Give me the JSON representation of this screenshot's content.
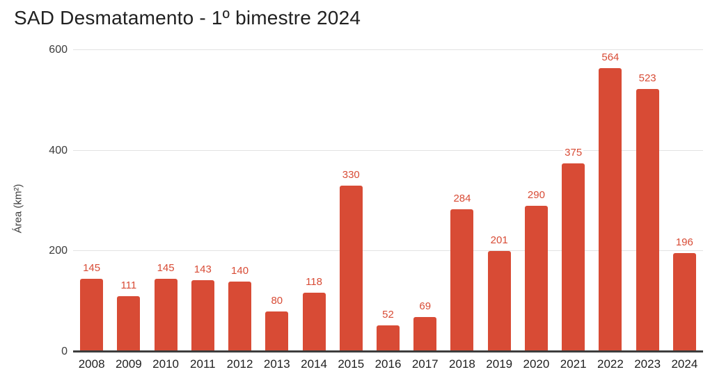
{
  "chart_data": {
    "type": "bar",
    "title": "SAD Desmatamento - 1º bimestre 2024",
    "xlabel": "",
    "ylabel": "Área (km²)",
    "categories": [
      "2008",
      "2009",
      "2010",
      "2011",
      "2012",
      "2013",
      "2014",
      "2015",
      "2016",
      "2017",
      "2018",
      "2019",
      "2020",
      "2021",
      "2022",
      "2023",
      "2024"
    ],
    "values": [
      145,
      111,
      145,
      143,
      140,
      80,
      118,
      330,
      52,
      69,
      284,
      201,
      290,
      375,
      564,
      523,
      196
    ],
    "ylim": [
      0,
      600
    ],
    "yticks": [
      0,
      200,
      400,
      600
    ],
    "grid": "horizontal",
    "legend": "none",
    "data_labels": "above-bars",
    "colors": {
      "bar": "#d84b35",
      "value_label": "#d84b35",
      "title": "#212121",
      "y_tick": "#3c3c3c",
      "x_tick": "#1f1f1f",
      "gridline": "#e2e2e2",
      "axis_line": "#3d3d3d",
      "background": "#ffffff"
    }
  }
}
